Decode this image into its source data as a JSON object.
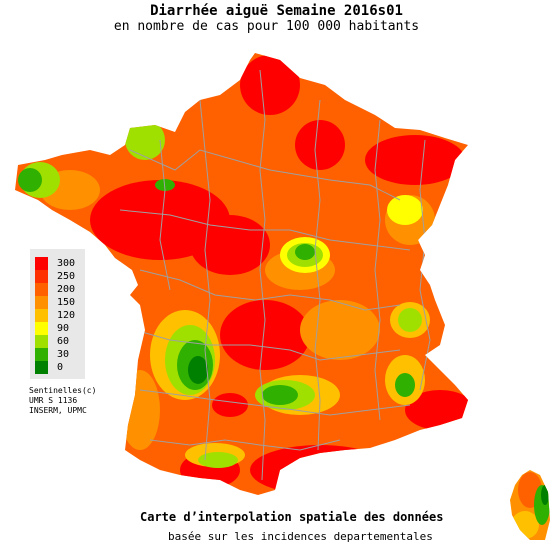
{
  "title": "Diarrhée aiguë Semaine 2016s01",
  "subtitle": "en nombre de cas pour 100 000 habitants",
  "legend": {
    "items": [
      {
        "label": "300",
        "color": "#ff0000"
      },
      {
        "label": "250",
        "color": "#ff3000"
      },
      {
        "label": "200",
        "color": "#ff6000"
      },
      {
        "label": "150",
        "color": "#ff9000"
      },
      {
        "label": "120",
        "color": "#ffc000"
      },
      {
        "label": "90",
        "color": "#ffff00"
      },
      {
        "label": "60",
        "color": "#a0e000"
      },
      {
        "label": "30",
        "color": "#30b000"
      },
      {
        "label": "0",
        "color": "#008000"
      }
    ]
  },
  "credits": [
    "Sentinelles(c)",
    "UMR S 1136",
    "INSERM, UPMC"
  ],
  "footer": {
    "line1": "Carte d’interpolation spatiale des données",
    "line2": "basée sur les incidences departementales"
  },
  "colors": {
    "border": "#a0a0a0",
    "legend_bg": "#e8e8e8"
  }
}
